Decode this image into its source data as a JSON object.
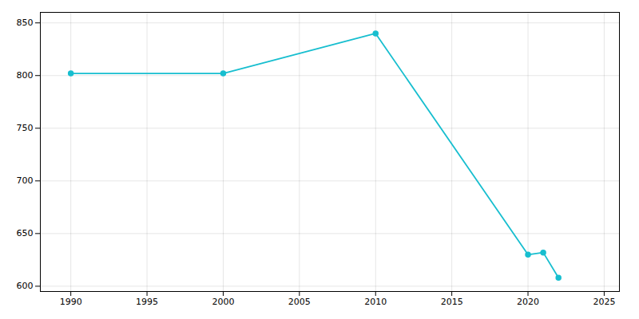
{
  "chart_data": {
    "type": "line",
    "x": [
      1990,
      2000,
      2010,
      2020,
      2021,
      2022
    ],
    "values": [
      802,
      802,
      840,
      630,
      632,
      608
    ],
    "color": "#17BECF",
    "marker": "circle",
    "xlim": [
      1988,
      2026
    ],
    "xticks": [
      1990,
      1995,
      2000,
      2005,
      2010,
      2015,
      2020,
      2025
    ],
    "ylim": [
      595,
      860
    ],
    "yticks": [
      600,
      650,
      700,
      750,
      800,
      850
    ],
    "grid": true
  }
}
